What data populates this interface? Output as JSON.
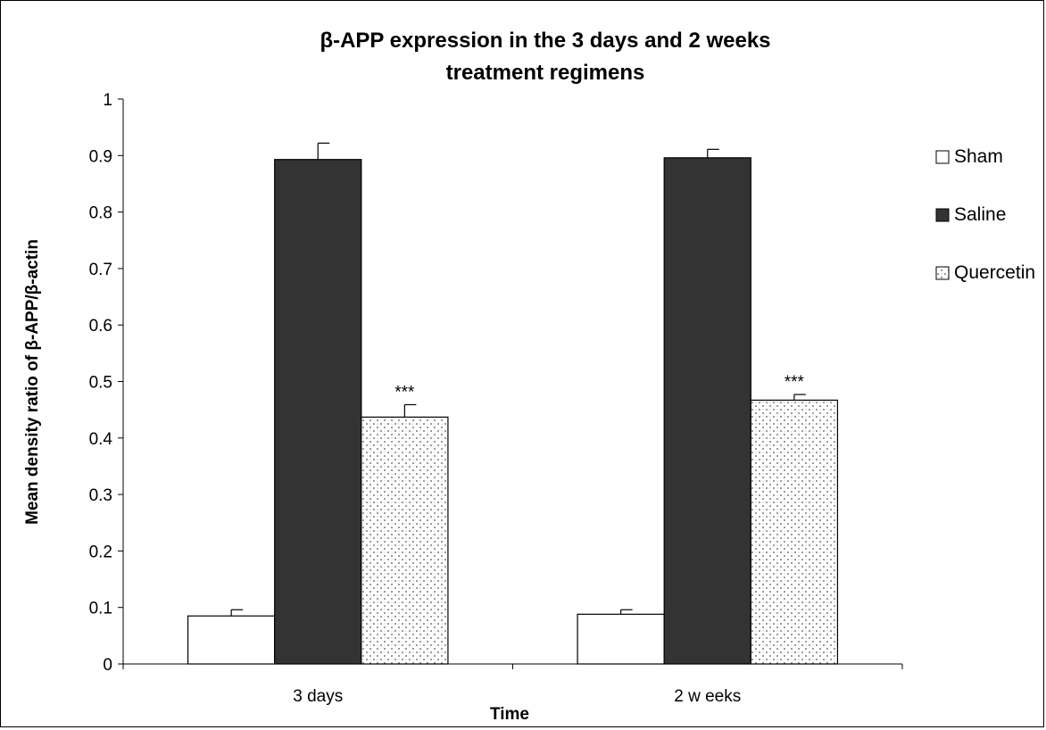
{
  "chart_data": {
    "type": "bar",
    "title_line1": "β-APP expression  in the 3 days and 2 weeks",
    "title_line2": "treatment regimens",
    "xlabel": "Time",
    "ylabel": "Mean density ratio of β-APP/β-actin",
    "ylim": [
      0,
      1
    ],
    "yticks": [
      "0",
      "0.1",
      "0.2",
      "0.3",
      "0.4",
      "0.5",
      "0.6",
      "0.7",
      "0.8",
      "0.9",
      "1"
    ],
    "categories": [
      "3 days",
      "2 w eeks"
    ],
    "series": [
      {
        "name": "Sham",
        "values": [
          0.085,
          0.088
        ],
        "errors": [
          0.011,
          0.008
        ],
        "color": "#ffffff",
        "pattern": "solid-white"
      },
      {
        "name": "Saline",
        "values": [
          0.893,
          0.896
        ],
        "errors": [
          0.029,
          0.015
        ],
        "color": "#333333",
        "pattern": "solid-dark"
      },
      {
        "name": "Quercetin",
        "values": [
          0.437,
          0.467
        ],
        "errors": [
          0.022,
          0.01
        ],
        "color": "#ffffff",
        "pattern": "dotted"
      }
    ],
    "annotations": [
      {
        "series": "Quercetin",
        "category": "3 days",
        "text": "***"
      },
      {
        "series": "Quercetin",
        "category": "2 w eeks",
        "text": "***"
      }
    ],
    "grid": false,
    "legend_position": "right"
  }
}
